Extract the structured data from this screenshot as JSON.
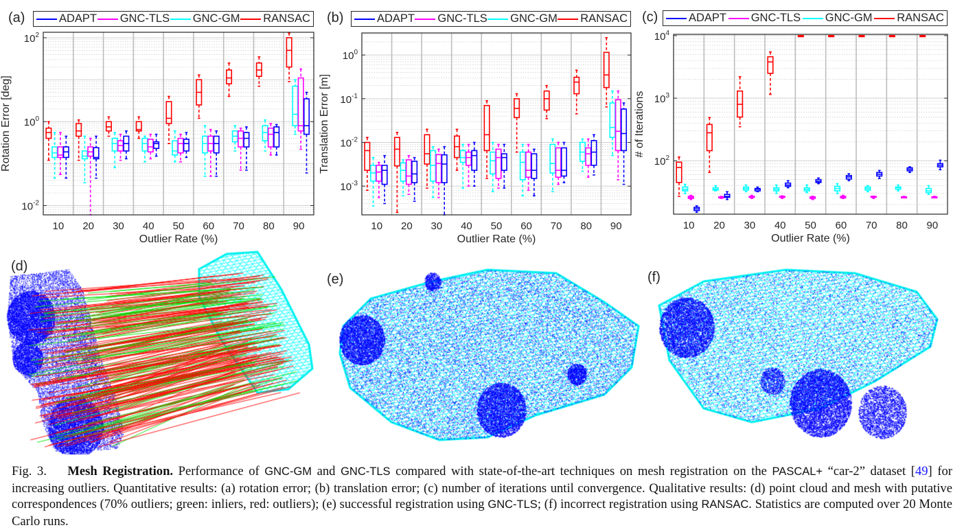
{
  "legend": [
    {
      "name": "ADAPT",
      "color": "#0000ff"
    },
    {
      "name": "GNC-TLS",
      "color": "#ff00ff"
    },
    {
      "name": "GNC-GM",
      "color": "#00ffff"
    },
    {
      "name": "RANSAC",
      "color": "#ff0000"
    }
  ],
  "panels": {
    "a": "(a)",
    "b": "(b)",
    "c": "(c)",
    "d": "(d)",
    "e": "(e)",
    "f": "(f)"
  },
  "chart_data": [
    {
      "type": "box",
      "panel": "(a)",
      "ylabel": "Rotation Error [deg]",
      "xlabel": "Outlier Rate (%)",
      "categories": [
        "10",
        "20",
        "30",
        "40",
        "50",
        "60",
        "70",
        "80",
        "90"
      ],
      "yscale": "log",
      "ylim": [
        0.006,
        135
      ],
      "yticks": [
        0.01,
        1,
        100
      ],
      "grid": true,
      "legend_position": "top",
      "box_format": [
        "whisker_low",
        "q1",
        "median",
        "q3",
        "whisker_high"
      ],
      "series": [
        {
          "name": "RANSAC",
          "color": "#ff0000",
          "boxes": [
            [
              0.12,
              0.4,
              0.55,
              0.7,
              1.0
            ],
            [
              0.12,
              0.45,
              0.6,
              0.9,
              1.1
            ],
            [
              0.45,
              0.6,
              0.75,
              1.0,
              1.3
            ],
            [
              0.4,
              0.6,
              0.65,
              1.0,
              1.3
            ],
            [
              0.3,
              0.9,
              1.2,
              3.0,
              4.0
            ],
            [
              1.2,
              2.5,
              5,
              10,
              13
            ],
            [
              4,
              8,
              11,
              17,
              25
            ],
            [
              7,
              12,
              17,
              25,
              35
            ],
            [
              9,
              20,
              50,
              100,
              130
            ]
          ]
        },
        {
          "name": "GNC-GM",
          "color": "#00ffff",
          "boxes": [
            [
              0.045,
              0.14,
              0.18,
              0.25,
              0.55
            ],
            [
              0.035,
              0.13,
              0.15,
              0.2,
              0.45
            ],
            [
              0.08,
              0.2,
              0.3,
              0.4,
              0.55
            ],
            [
              0.11,
              0.2,
              0.3,
              0.4,
              0.45
            ],
            [
              0.11,
              0.16,
              0.2,
              0.35,
              0.6
            ],
            [
              0.05,
              0.18,
              0.3,
              0.45,
              0.8
            ],
            [
              0.2,
              0.33,
              0.45,
              0.6,
              0.8
            ],
            [
              0.2,
              0.35,
              0.55,
              0.8,
              1.1
            ],
            [
              0.5,
              0.8,
              1.5,
              7,
              10
            ]
          ]
        },
        {
          "name": "GNC-TLS",
          "color": "#ff00ff",
          "boxes": [
            [
              0.055,
              0.14,
              0.16,
              0.25,
              0.55
            ],
            [
              0.004,
              0.15,
              0.19,
              0.25,
              0.4
            ],
            [
              0.12,
              0.2,
              0.27,
              0.35,
              0.5
            ],
            [
              0.13,
              0.19,
              0.25,
              0.38,
              0.5
            ],
            [
              0.11,
              0.18,
              0.3,
              0.4,
              0.5
            ],
            [
              0.05,
              0.2,
              0.3,
              0.45,
              0.65
            ],
            [
              0.07,
              0.25,
              0.4,
              0.6,
              0.7
            ],
            [
              0.16,
              0.25,
              0.5,
              0.7,
              0.9
            ],
            [
              0.22,
              0.6,
              0.8,
              11,
              18
            ]
          ]
        },
        {
          "name": "ADAPT",
          "color": "#0000ff",
          "boxes": [
            [
              0.045,
              0.14,
              0.19,
              0.25,
              0.45
            ],
            [
              0.045,
              0.13,
              0.14,
              0.24,
              0.45
            ],
            [
              0.13,
              0.2,
              0.3,
              0.45,
              0.6
            ],
            [
              0.15,
              0.23,
              0.3,
              0.33,
              0.5
            ],
            [
              0.14,
              0.2,
              0.3,
              0.38,
              0.55
            ],
            [
              0.05,
              0.18,
              0.3,
              0.45,
              0.6
            ],
            [
              0.07,
              0.25,
              0.4,
              0.55,
              0.75
            ],
            [
              0.16,
              0.25,
              0.55,
              0.75,
              0.85
            ],
            [
              0.06,
              0.5,
              0.8,
              3.5,
              5
            ]
          ]
        }
      ]
    },
    {
      "type": "box",
      "panel": "(b)",
      "ylabel": "Translation Error [m]",
      "xlabel": "Outlier Rate (%)",
      "categories": [
        "10",
        "20",
        "30",
        "40",
        "50",
        "60",
        "70",
        "80",
        "90"
      ],
      "yscale": "log",
      "ylim": [
        0.00022,
        3.2
      ],
      "yticks": [
        0.001,
        0.01,
        0.1,
        1
      ],
      "grid": true,
      "legend_position": "top",
      "box_format": [
        "whisker_low",
        "q1",
        "median",
        "q3",
        "whisker_high"
      ],
      "series": [
        {
          "name": "RANSAC",
          "color": "#ff0000",
          "boxes": [
            [
              0.0008,
              0.0023,
              0.0065,
              0.01,
              0.013
            ],
            [
              0.00025,
              0.0029,
              0.007,
              0.013,
              0.017
            ],
            [
              0.0009,
              0.0032,
              0.0055,
              0.015,
              0.02
            ],
            [
              0.0023,
              0.0045,
              0.008,
              0.014,
              0.02
            ],
            [
              0.0015,
              0.0065,
              0.015,
              0.07,
              0.09
            ],
            [
              0.006,
              0.037,
              0.06,
              0.1,
              0.13
            ],
            [
              0.035,
              0.055,
              0.1,
              0.15,
              0.2
            ],
            [
              0.045,
              0.13,
              0.24,
              0.31,
              0.45
            ],
            [
              0.065,
              0.18,
              0.35,
              1.15,
              2.5
            ]
          ]
        },
        {
          "name": "GNC-GM",
          "color": "#00ffff",
          "boxes": [
            [
              0.00035,
              0.0013,
              0.002,
              0.003,
              0.0045
            ],
            [
              0.0006,
              0.0013,
              0.0023,
              0.0034,
              0.004
            ],
            [
              0.00055,
              0.0013,
              0.003,
              0.0065,
              0.008
            ],
            [
              0.0009,
              0.0035,
              0.0045,
              0.0065,
              0.009
            ],
            [
              0.00075,
              0.0019,
              0.0038,
              0.006,
              0.01
            ],
            [
              0.0006,
              0.0014,
              0.0035,
              0.006,
              0.009
            ],
            [
              0.00075,
              0.002,
              0.0033,
              0.009,
              0.012
            ],
            [
              0.0022,
              0.0037,
              0.006,
              0.01,
              0.012
            ],
            [
              0.005,
              0.013,
              0.022,
              0.08,
              0.15
            ]
          ]
        },
        {
          "name": "GNC-TLS",
          "color": "#ff00ff",
          "boxes": [
            [
              0.00055,
              0.0013,
              0.0021,
              0.003,
              0.0035
            ],
            [
              0.00065,
              0.0011,
              0.0017,
              0.004,
              0.005
            ],
            [
              0.00055,
              0.0012,
              0.0033,
              0.0053,
              0.007
            ],
            [
              0.001,
              0.003,
              0.0045,
              0.006,
              0.009
            ],
            [
              0.0009,
              0.0015,
              0.0045,
              0.007,
              0.009
            ],
            [
              0.0008,
              0.0016,
              0.0023,
              0.006,
              0.009
            ],
            [
              0.0011,
              0.0016,
              0.0023,
              0.0075,
              0.01
            ],
            [
              0.0016,
              0.003,
              0.0055,
              0.0075,
              0.012
            ],
            [
              0.0014,
              0.0065,
              0.018,
              0.095,
              0.15
            ]
          ]
        },
        {
          "name": "ADAPT",
          "color": "#0000ff",
          "boxes": [
            [
              0.0004,
              0.0011,
              0.0023,
              0.003,
              0.005
            ],
            [
              0.00045,
              0.0012,
              0.0019,
              0.0037,
              0.0045
            ],
            [
              0.00022,
              0.0012,
              0.0032,
              0.0052,
              0.008
            ],
            [
              0.001,
              0.0023,
              0.005,
              0.0065,
              0.01
            ],
            [
              0.0009,
              0.0023,
              0.0045,
              0.0055,
              0.009
            ],
            [
              0.0006,
              0.0015,
              0.0023,
              0.0055,
              0.007
            ],
            [
              0.0012,
              0.0017,
              0.0023,
              0.0075,
              0.01
            ],
            [
              0.0018,
              0.003,
              0.006,
              0.011,
              0.015
            ],
            [
              0.0011,
              0.0065,
              0.016,
              0.058,
              0.08
            ]
          ]
        }
      ]
    },
    {
      "type": "box",
      "panel": "(c)",
      "ylabel": "# of Iterations",
      "xlabel": "Outlier Rate (%)",
      "categories": [
        "10",
        "20",
        "30",
        "40",
        "50",
        "60",
        "70",
        "80",
        "90"
      ],
      "yscale": "log",
      "ylim": [
        14,
        10500
      ],
      "yticks": [
        100,
        1000,
        10000
      ],
      "grid": true,
      "legend_position": "top",
      "box_format": [
        "whisker_low",
        "q1",
        "median",
        "q3",
        "whisker_high"
      ],
      "series": [
        {
          "name": "RANSAC",
          "color": "#ff0000",
          "boxes": [
            [
              27,
              45,
              78,
              95,
              115
            ],
            [
              65,
              145,
              280,
              380,
              490
            ],
            [
              350,
              500,
              800,
              1300,
              2200
            ],
            [
              1150,
              2500,
              3800,
              4600,
              5500
            ],
            [
              10000,
              10000,
              10000,
              10000,
              10000
            ],
            [
              10000,
              10000,
              10000,
              10000,
              10000
            ],
            [
              10000,
              10000,
              10000,
              10000,
              10000
            ],
            [
              10000,
              10000,
              10000,
              10000,
              10000
            ],
            [
              10000,
              10000,
              10000,
              10000,
              10000
            ]
          ]
        },
        {
          "name": "GNC-GM",
          "color": "#00ffff",
          "boxes": [
            [
              30,
              33,
              35,
              38,
              42
            ],
            [
              33,
              34,
              35,
              37,
              40
            ],
            [
              32,
              34,
              36,
              38,
              41
            ],
            [
              30,
              33,
              35,
              37,
              41
            ],
            [
              31,
              33,
              35,
              37,
              41
            ],
            [
              30,
              33,
              36,
              39,
              43
            ],
            [
              32,
              34,
              36,
              38,
              40
            ],
            [
              33,
              35,
              37,
              38,
              41
            ],
            [
              29,
              31,
              33,
              36,
              40
            ]
          ]
        },
        {
          "name": "GNC-TLS",
          "color": "#ff00ff",
          "boxes": [
            [
              24,
              25,
              26,
              27,
              28
            ],
            [
              25,
              25.5,
              26,
              26.5,
              27
            ],
            [
              25,
              26,
              26,
              27,
              28
            ],
            [
              25,
              26,
              26.5,
              27,
              27.5
            ],
            [
              24,
              25,
              26,
              26.5,
              27
            ],
            [
              25,
              25.5,
              26,
              27,
              28
            ],
            [
              25,
              26,
              26.5,
              27,
              27
            ],
            [
              26,
              26,
              26.5,
              26.5,
              27
            ],
            [
              26,
              26,
              26.5,
              26.5,
              27
            ]
          ]
        },
        {
          "name": "ADAPT",
          "color": "#0000ff",
          "boxes": [
            [
              15,
              16,
              17,
              18,
              19
            ],
            [
              24,
              26,
              27,
              29,
              32
            ],
            [
              32,
              33,
              35,
              36,
              38
            ],
            [
              37,
              39,
              41,
              44,
              48
            ],
            [
              43,
              45,
              47,
              50,
              53
            ],
            [
              48,
              51,
              55,
              58,
              62
            ],
            [
              52,
              57,
              61,
              65,
              70
            ],
            [
              65,
              69,
              73,
              77,
              80
            ],
            [
              72,
              80,
              85,
              90,
              102
            ]
          ]
        }
      ]
    }
  ],
  "images": {
    "d": {
      "description_colors": {
        "point_cloud": "#0000ff",
        "mesh": "#00ffff",
        "inliers": "#00ff00",
        "outliers": "#ff0000"
      }
    },
    "e": {
      "description_colors": {
        "point_cloud": "#0000ff",
        "mesh": "#00ffff"
      }
    },
    "f": {
      "description_colors": {
        "point_cloud": "#0000ff",
        "mesh": "#00ffff"
      }
    }
  },
  "caption": {
    "fig": "Fig. 3.",
    "title": "Mesh Registration.",
    "t1": " Performance of ",
    "m1": "GNC-GM",
    "t2": " and ",
    "m2": "GNC-TLS",
    "t3": " compared with state-of-the-art techniques on mesh registration on the ",
    "m3": "PASCAL+",
    "t4": " “car-2” dataset [",
    "ref": "49",
    "t5": "] for increasing outliers.  Quantitative results: (a) rotation error; (b) translation error; (c) number of iterations until convergence. Qualitative results: (d) point cloud and mesh with putative correspondences (70% outliers; green: inliers, red: outliers); (e) successful registration using ",
    "m4": "GNC-TLS",
    "t6": "; (f) incorrect registration using ",
    "m5": "RANSAC",
    "t7": ".  Statistics are computed over 20 Monte Carlo runs."
  }
}
